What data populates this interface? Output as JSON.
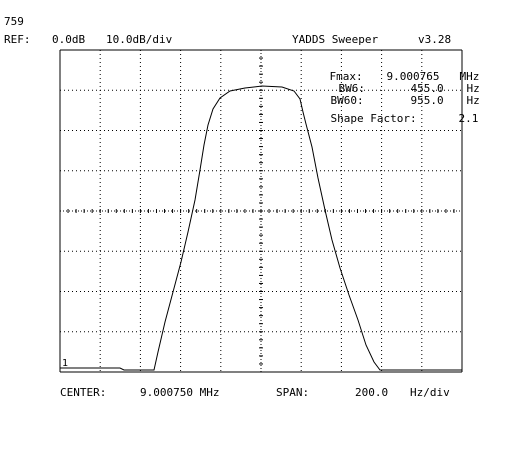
{
  "header": {
    "sweep_count": "759",
    "ref_label": "REF:",
    "ref_level": "0.0dB",
    "scale": "10.0dB/div",
    "app_title": "YADDS Sweeper",
    "version": "v3.28"
  },
  "measurements": {
    "fmax_label": "Fmax:",
    "fmax_value": "9.000765",
    "fmax_unit": "MHz",
    "bw6_label": "BW6:",
    "bw6_value": "455.0",
    "bw6_unit": "Hz",
    "bw60_label": "BW60:",
    "bw60_value": "955.0",
    "bw60_unit": "Hz",
    "shape_factor_label": "Shape Factor:",
    "shape_factor_value": "2.1"
  },
  "trace": {
    "marker_label": "1",
    "color": "#000000",
    "grid_color": "#000000"
  },
  "footer": {
    "center_label": "CENTER:",
    "center_value": "9.000750 MHz",
    "span_label": "SPAN:",
    "span_value": "200.0",
    "span_unit": "Hz/div"
  }
}
